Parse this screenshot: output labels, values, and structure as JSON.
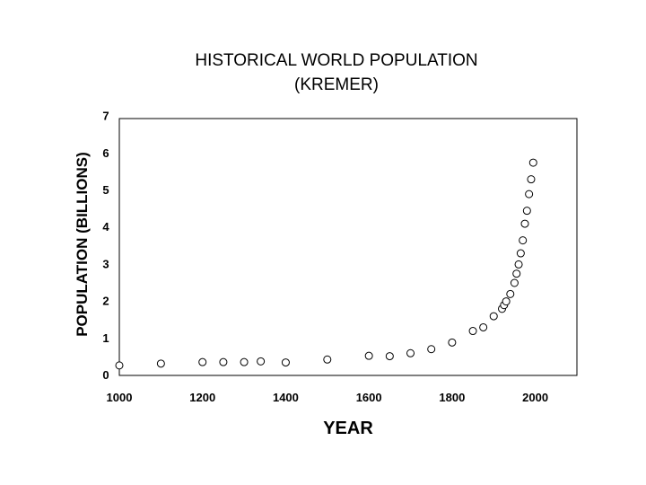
{
  "chart_data": {
    "type": "scatter",
    "title_line1": "HISTORICAL WORLD POPULATION",
    "title_line2": "(KREMER)",
    "xlabel": "YEAR",
    "ylabel": "POPULATION (BILLIONS)",
    "xlim": [
      1000,
      2100
    ],
    "ylim": [
      0,
      7
    ],
    "x_ticks": [
      1000,
      1200,
      1400,
      1600,
      1800,
      2000
    ],
    "y_ticks": [
      0,
      1,
      2,
      3,
      4,
      5,
      6,
      7
    ],
    "grid": false,
    "points": [
      {
        "x": 1000,
        "y": 0.27
      },
      {
        "x": 1100,
        "y": 0.32
      },
      {
        "x": 1200,
        "y": 0.36
      },
      {
        "x": 1250,
        "y": 0.36
      },
      {
        "x": 1300,
        "y": 0.36
      },
      {
        "x": 1340,
        "y": 0.38
      },
      {
        "x": 1400,
        "y": 0.35
      },
      {
        "x": 1500,
        "y": 0.43
      },
      {
        "x": 1600,
        "y": 0.53
      },
      {
        "x": 1650,
        "y": 0.52
      },
      {
        "x": 1700,
        "y": 0.6
      },
      {
        "x": 1750,
        "y": 0.71
      },
      {
        "x": 1800,
        "y": 0.89
      },
      {
        "x": 1850,
        "y": 1.2
      },
      {
        "x": 1875,
        "y": 1.3
      },
      {
        "x": 1900,
        "y": 1.6
      },
      {
        "x": 1920,
        "y": 1.8
      },
      {
        "x": 1925,
        "y": 1.9
      },
      {
        "x": 1930,
        "y": 2.0
      },
      {
        "x": 1940,
        "y": 2.2
      },
      {
        "x": 1950,
        "y": 2.5
      },
      {
        "x": 1955,
        "y": 2.75
      },
      {
        "x": 1960,
        "y": 3.0
      },
      {
        "x": 1965,
        "y": 3.3
      },
      {
        "x": 1970,
        "y": 3.65
      },
      {
        "x": 1975,
        "y": 4.1
      },
      {
        "x": 1980,
        "y": 4.45
      },
      {
        "x": 1985,
        "y": 4.9
      },
      {
        "x": 1990,
        "y": 5.3
      },
      {
        "x": 1995,
        "y": 5.75
      }
    ]
  }
}
